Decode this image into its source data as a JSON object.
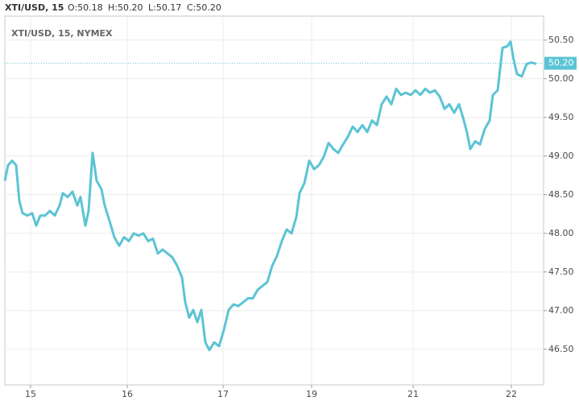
{
  "chart_data": {
    "type": "line",
    "symbol": "XTI/USD, 15",
    "ohlc": [
      "O:50.18",
      "H:50.20",
      "L:50.17",
      "C:50.20"
    ],
    "title": "XTI/USD, 15, NYMEX",
    "x": [
      0,
      4,
      9,
      14,
      18,
      22,
      28,
      34,
      39,
      44,
      50,
      56,
      62,
      68,
      72,
      78,
      84,
      90,
      94,
      100,
      104,
      109,
      114,
      120,
      124,
      130,
      136,
      142,
      148,
      154,
      160,
      166,
      172,
      178,
      184,
      190,
      196,
      202,
      208,
      214,
      220,
      224,
      229,
      234,
      239,
      244,
      249,
      254,
      260,
      266,
      272,
      278,
      284,
      290,
      296,
      302,
      308,
      314,
      320,
      326,
      332,
      338,
      344,
      350,
      356,
      362,
      366,
      372,
      378,
      384,
      390,
      396,
      402,
      408,
      414,
      420,
      426,
      432,
      438,
      444,
      450,
      456,
      462,
      468,
      474,
      480,
      486,
      492,
      498,
      504,
      510,
      516,
      522,
      528,
      534,
      540,
      546,
      552,
      558,
      564,
      570,
      574,
      578,
      584,
      590,
      596,
      602,
      606,
      612,
      618,
      624,
      628,
      632,
      636,
      642,
      648,
      654,
      660
    ],
    "series": [
      {
        "name": "XTI/USD",
        "color": "#5bc4d4",
        "values": [
          48.68,
          48.88,
          48.94,
          48.88,
          48.42,
          48.26,
          48.23,
          48.26,
          48.1,
          48.23,
          48.23,
          48.29,
          48.23,
          48.36,
          48.52,
          48.47,
          48.54,
          48.36,
          48.47,
          48.1,
          48.29,
          49.04,
          48.68,
          48.57,
          48.36,
          48.16,
          47.95,
          47.84,
          47.95,
          47.9,
          48.0,
          47.97,
          48.0,
          47.9,
          47.93,
          47.74,
          47.79,
          47.74,
          47.69,
          47.58,
          47.43,
          47.11,
          46.91,
          47.01,
          46.85,
          47.01,
          46.59,
          46.49,
          46.59,
          46.54,
          46.75,
          47.01,
          47.08,
          47.06,
          47.11,
          47.16,
          47.16,
          47.27,
          47.32,
          47.37,
          47.58,
          47.71,
          47.9,
          48.05,
          48.0,
          48.21,
          48.52,
          48.65,
          48.94,
          48.83,
          48.88,
          48.99,
          49.17,
          49.09,
          49.04,
          49.15,
          49.25,
          49.38,
          49.31,
          49.4,
          49.31,
          49.46,
          49.4,
          49.67,
          49.77,
          49.67,
          49.87,
          49.79,
          49.82,
          49.79,
          49.85,
          49.79,
          49.87,
          49.82,
          49.85,
          49.77,
          49.61,
          49.67,
          49.56,
          49.67,
          49.46,
          49.3,
          49.09,
          49.19,
          49.15,
          49.35,
          49.46,
          49.79,
          49.85,
          50.4,
          50.42,
          50.48,
          50.24,
          50.06,
          50.03,
          50.19,
          50.21,
          50.19
        ]
      }
    ],
    "price_line": {
      "value": 50.2,
      "label": "50.20",
      "color": "#5bc4d4"
    },
    "xlim": [
      0,
      669
    ],
    "xticks": [
      {
        "value": 32,
        "label": "15"
      },
      {
        "value": 152,
        "label": "16"
      },
      {
        "value": 271,
        "label": "17"
      },
      {
        "value": 381,
        "label": "19"
      },
      {
        "value": 507,
        "label": "21"
      },
      {
        "value": 629,
        "label": "22"
      }
    ],
    "ylim": [
      46.04,
      50.81
    ],
    "yticks": [
      {
        "value": 46.5,
        "label": "46.50"
      },
      {
        "value": 47,
        "label": "47.00"
      },
      {
        "value": 47.5,
        "label": "47.50"
      },
      {
        "value": 48,
        "label": "48.00"
      },
      {
        "value": 48.5,
        "label": "48.50"
      },
      {
        "value": 49,
        "label": "49.00"
      },
      {
        "value": 49.5,
        "label": "49.50"
      },
      {
        "value": 50,
        "label": "50.00"
      },
      {
        "value": 50.5,
        "label": "50.50"
      }
    ],
    "grid": true
  }
}
